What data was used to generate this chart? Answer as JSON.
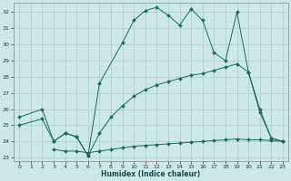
{
  "xlabel": "Humidex (Indice chaleur)",
  "background_color": "#cce8e8",
  "grid_color": "#aacccc",
  "line_color": "#1a6b5a",
  "xlim": [
    -0.5,
    23.5
  ],
  "ylim": [
    22.8,
    32.6
  ],
  "yticks": [
    23,
    24,
    25,
    26,
    27,
    28,
    29,
    30,
    31,
    32
  ],
  "xticks": [
    0,
    1,
    2,
    3,
    4,
    5,
    6,
    7,
    8,
    9,
    10,
    11,
    12,
    13,
    14,
    15,
    16,
    17,
    18,
    19,
    20,
    21,
    22,
    23
  ],
  "curve1_x": [
    0,
    2,
    3,
    4,
    5,
    6,
    7,
    9,
    10,
    11,
    12,
    13,
    14,
    15,
    16,
    17,
    18,
    19,
    20,
    21,
    22,
    23
  ],
  "curve1_y": [
    25.5,
    26.0,
    24.0,
    24.5,
    24.3,
    23.1,
    27.6,
    30.1,
    31.5,
    32.1,
    32.3,
    31.8,
    31.2,
    32.2,
    31.5,
    29.5,
    29.0,
    32.0,
    28.3,
    25.8,
    24.2,
    24.0
  ],
  "curve2_x": [
    0,
    2,
    3,
    4,
    5,
    6,
    7,
    8,
    9,
    10,
    11,
    12,
    13,
    14,
    15,
    16,
    17,
    18,
    19,
    20,
    21,
    22,
    23
  ],
  "curve2_y": [
    25.0,
    25.4,
    24.0,
    24.5,
    24.3,
    23.1,
    24.5,
    25.5,
    26.2,
    26.8,
    27.2,
    27.5,
    27.7,
    27.9,
    28.1,
    28.2,
    28.4,
    28.6,
    28.8,
    28.3,
    26.0,
    24.2,
    24.0
  ],
  "curve3_x": [
    3,
    4,
    5,
    6,
    7,
    8,
    9,
    10,
    11,
    12,
    13,
    14,
    15,
    16,
    17,
    18,
    19,
    20,
    21,
    22,
    23
  ],
  "curve3_y": [
    23.5,
    23.4,
    23.4,
    23.3,
    23.4,
    23.5,
    23.6,
    23.7,
    23.75,
    23.8,
    23.85,
    23.9,
    23.95,
    24.0,
    24.05,
    24.1,
    24.15,
    24.1,
    24.1,
    24.05,
    24.0
  ]
}
